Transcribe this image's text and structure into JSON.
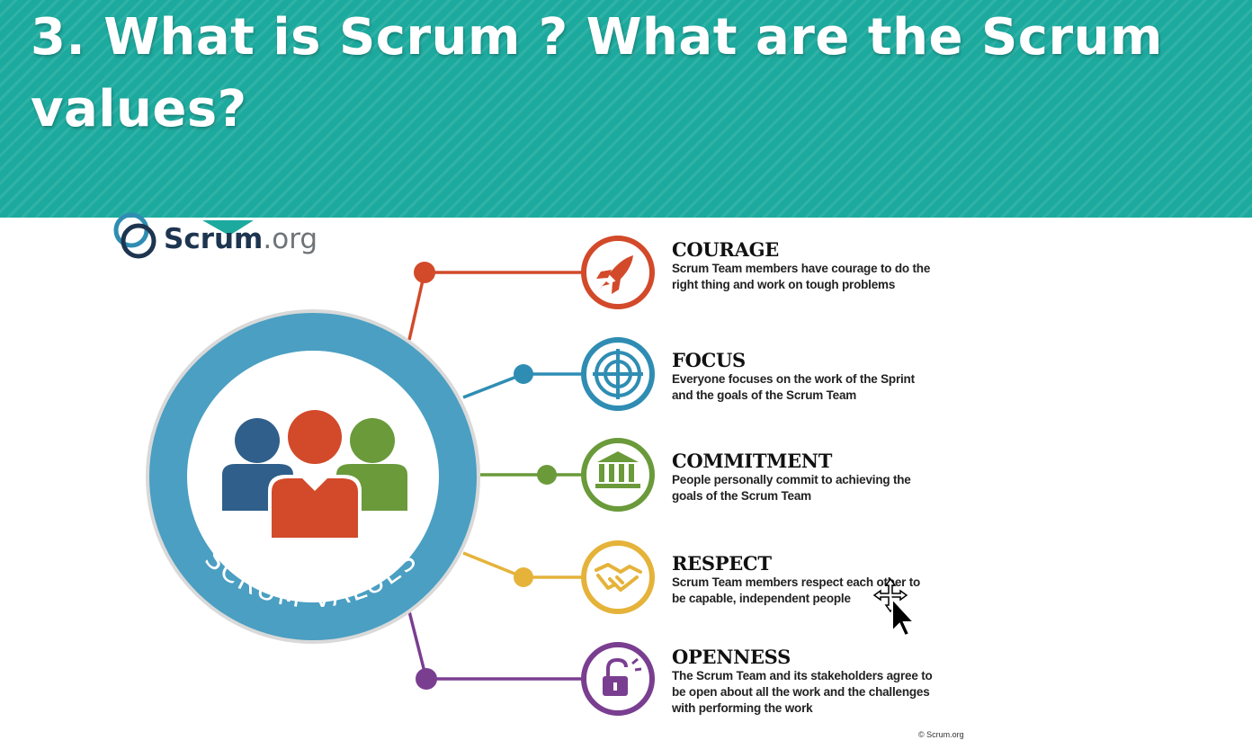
{
  "slide": {
    "title": "3. What is Scrum ?  What are the Scrum values?"
  },
  "logo": {
    "brand_bold": "Scrum",
    "brand_rest": ".org"
  },
  "badge": {
    "label": "SCRUM VALUES"
  },
  "values": [
    {
      "name": "COURAGE",
      "description": "Scrum Team members have courage to do the right thing and work on tough problems",
      "color": "#d24a2a",
      "icon": "rocket-icon"
    },
    {
      "name": "FOCUS",
      "description": "Everyone focuses on the work of the Sprint and the goals of the Scrum Team",
      "color": "#2f8db3",
      "icon": "target-icon"
    },
    {
      "name": "COMMITMENT",
      "description": "People personally commit to achieving the goals of the Scrum Team",
      "color": "#6a9a3a",
      "icon": "pillars-icon"
    },
    {
      "name": "RESPECT",
      "description": "Scrum Team members respect each other to be capable, independent people",
      "color": "#e5b33a",
      "icon": "handshake-icon"
    },
    {
      "name": "OPENNESS",
      "description": "The Scrum Team and its stakeholders agree to be open about all the work and the challenges with performing the work",
      "color": "#7a3e91",
      "icon": "open-lock-icon"
    }
  ],
  "footer": {
    "copyright": "© Scrum.org"
  },
  "colors": {
    "banner": "#1daa9e",
    "ring": "#4a9fc2",
    "person_left": "#2f5f8a",
    "person_center": "#d24a2a",
    "person_right": "#6a9a3a"
  }
}
